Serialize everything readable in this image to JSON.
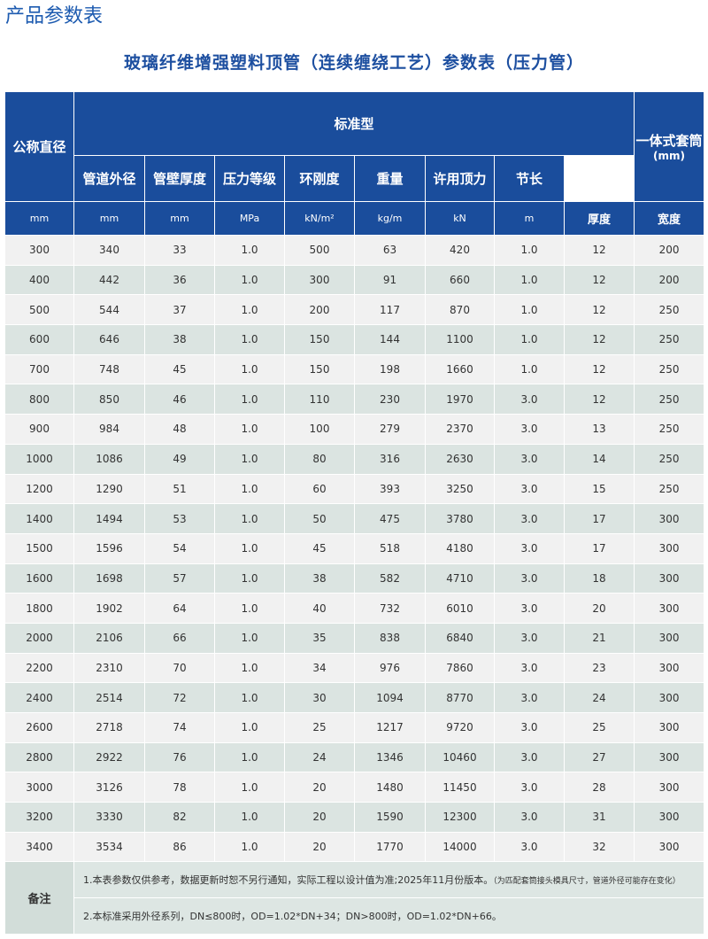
{
  "header": {
    "title": "产品参数表",
    "subtitle": "玻璃纤维增强塑料顶管（连续缠绕工艺）参数表（压力管）"
  },
  "table": {
    "corner": "公称直径",
    "group": "标准型",
    "sleeve": {
      "title": "一体式套筒",
      "unit": "(mm)"
    },
    "columns": [
      "管道外径",
      "管壁厚度",
      "压力等级",
      "环刚度",
      "重量",
      "许用顶力",
      "节长"
    ],
    "units": [
      "mm",
      "mm",
      "mm",
      "MPa",
      "kN/m²",
      "kg/m",
      "kN",
      "m",
      "厚度",
      "宽度"
    ],
    "rows": [
      [
        "300",
        "340",
        "33",
        "1.0",
        "500",
        "63",
        "420",
        "1.0",
        "12",
        "200"
      ],
      [
        "400",
        "442",
        "36",
        "1.0",
        "300",
        "91",
        "660",
        "1.0",
        "12",
        "200"
      ],
      [
        "500",
        "544",
        "37",
        "1.0",
        "200",
        "117",
        "870",
        "1.0",
        "12",
        "250"
      ],
      [
        "600",
        "646",
        "38",
        "1.0",
        "150",
        "144",
        "1100",
        "1.0",
        "12",
        "250"
      ],
      [
        "700",
        "748",
        "45",
        "1.0",
        "150",
        "198",
        "1660",
        "1.0",
        "12",
        "250"
      ],
      [
        "800",
        "850",
        "46",
        "1.0",
        "110",
        "230",
        "1970",
        "3.0",
        "12",
        "250"
      ],
      [
        "900",
        "984",
        "48",
        "1.0",
        "100",
        "279",
        "2370",
        "3.0",
        "13",
        "250"
      ],
      [
        "1000",
        "1086",
        "49",
        "1.0",
        "80",
        "316",
        "2630",
        "3.0",
        "14",
        "250"
      ],
      [
        "1200",
        "1290",
        "51",
        "1.0",
        "60",
        "393",
        "3250",
        "3.0",
        "15",
        "250"
      ],
      [
        "1400",
        "1494",
        "53",
        "1.0",
        "50",
        "475",
        "3780",
        "3.0",
        "17",
        "300"
      ],
      [
        "1500",
        "1596",
        "54",
        "1.0",
        "45",
        "518",
        "4180",
        "3.0",
        "17",
        "300"
      ],
      [
        "1600",
        "1698",
        "57",
        "1.0",
        "38",
        "582",
        "4710",
        "3.0",
        "18",
        "300"
      ],
      [
        "1800",
        "1902",
        "64",
        "1.0",
        "40",
        "732",
        "6010",
        "3.0",
        "20",
        "300"
      ],
      [
        "2000",
        "2106",
        "66",
        "1.0",
        "35",
        "838",
        "6840",
        "3.0",
        "21",
        "300"
      ],
      [
        "2200",
        "2310",
        "70",
        "1.0",
        "34",
        "976",
        "7860",
        "3.0",
        "23",
        "300"
      ],
      [
        "2400",
        "2514",
        "72",
        "1.0",
        "30",
        "1094",
        "8770",
        "3.0",
        "24",
        "300"
      ],
      [
        "2600",
        "2718",
        "74",
        "1.0",
        "25",
        "1217",
        "9720",
        "3.0",
        "25",
        "300"
      ],
      [
        "2800",
        "2922",
        "76",
        "1.0",
        "24",
        "1346",
        "10460",
        "3.0",
        "27",
        "300"
      ],
      [
        "3000",
        "3126",
        "78",
        "1.0",
        "20",
        "1480",
        "11450",
        "3.0",
        "28",
        "300"
      ],
      [
        "3200",
        "3330",
        "82",
        "1.0",
        "20",
        "1590",
        "12300",
        "3.0",
        "31",
        "300"
      ],
      [
        "3400",
        "3534",
        "86",
        "1.0",
        "20",
        "1770",
        "14000",
        "3.0",
        "32",
        "300"
      ]
    ]
  },
  "notes": {
    "label": "备注",
    "items": [
      {
        "text": "1.本表参数仅供参考，数据更新时恕不另行通知，实际工程以设计值为准;2025年11月份版本。",
        "small": "（为匹配套筒接头模具尺寸，管道外径可能存在变化）"
      },
      {
        "text": "2.本标准采用外径系列，DN≤800时，OD=1.02*DN+34；DN>800时，OD=1.02*DN+66。"
      }
    ]
  }
}
